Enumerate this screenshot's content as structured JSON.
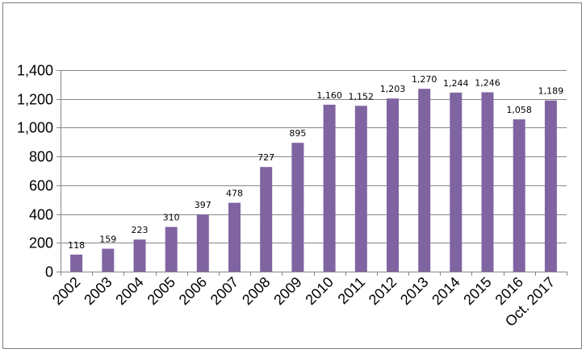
{
  "chart_data": {
    "type": "bar",
    "title": "",
    "xlabel": "",
    "ylabel": "",
    "categories": [
      "2002",
      "2003",
      "2004",
      "2005",
      "2006",
      "2007",
      "2008",
      "2009",
      "2010",
      "2011",
      "2012",
      "2013",
      "2014",
      "2015",
      "2016",
      "Oct. 2017"
    ],
    "values": [
      118,
      159,
      223,
      310,
      397,
      478,
      727,
      895,
      1160,
      1152,
      1203,
      1270,
      1244,
      1246,
      1058,
      1189
    ],
    "value_labels": [
      "118",
      "159",
      "223",
      "310",
      "397",
      "478",
      "727",
      "895",
      "1,160",
      "1,152",
      "1,203",
      "1,270",
      "1,244",
      "1,246",
      "1,058",
      "1,189"
    ],
    "ylim": [
      0,
      1400
    ],
    "yticks": [
      0,
      200,
      400,
      600,
      800,
      1000,
      1200,
      1400
    ],
    "ytick_labels": [
      "0",
      "200",
      "400",
      "600",
      "800",
      "1,000",
      "1,200",
      "1,400"
    ],
    "grid": true,
    "legend": "none",
    "colors": {
      "bar": "#8064a2",
      "grid": "#868686",
      "axis": "#868686"
    }
  }
}
